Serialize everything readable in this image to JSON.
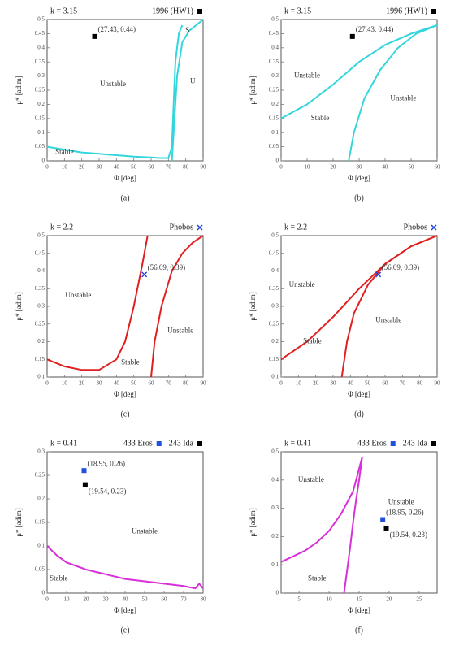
{
  "chart_data": [
    {
      "type": "line",
      "title": "k = 3.15",
      "caption": "(a)",
      "xlabel": "Φ [deg]",
      "ylabel": "μ* [adim]",
      "xlim": [
        0,
        90
      ],
      "xticks": [
        0,
        10,
        20,
        30,
        40,
        50,
        60,
        70,
        80,
        90
      ],
      "ylim": [
        0,
        0.5
      ],
      "yticks": [
        0,
        0.05,
        0.1,
        0.15,
        0.2,
        0.25,
        0.3,
        0.35,
        0.4,
        0.45,
        0.5
      ],
      "curves": [
        {
          "color": "#33d6dc",
          "x": [
            0,
            10,
            20,
            30,
            40,
            50,
            60,
            65,
            70,
            72,
            73,
            74,
            76,
            78
          ],
          "values": [
            0.05,
            0.04,
            0.03,
            0.025,
            0.02,
            0.015,
            0.012,
            0.01,
            0.01,
            0.05,
            0.2,
            0.35,
            0.45,
            0.48
          ]
        },
        {
          "color": "#33d6dc",
          "x": [
            72,
            73,
            75,
            78,
            82,
            86,
            90
          ],
          "values": [
            0,
            0.1,
            0.3,
            0.42,
            0.46,
            0.48,
            0.5
          ]
        }
      ],
      "series": [
        {
          "name": "1996 (HW1)",
          "color": "#000000",
          "marker": "square",
          "x": [
            27.43
          ],
          "values": [
            0.44
          ],
          "value_labels": [
            "(27.43, 0.44)"
          ]
        }
      ],
      "annotations": [
        {
          "text": "Unstable",
          "x": 38,
          "y": 0.27
        },
        {
          "text": "Stable",
          "x": 10,
          "y": 0.03
        },
        {
          "text": "S",
          "x": 81,
          "y": 0.46
        },
        {
          "text": "U",
          "x": 84,
          "y": 0.28
        }
      ]
    },
    {
      "type": "line",
      "title": "k = 3.15",
      "caption": "(b)",
      "xlabel": "Φ [deg]",
      "ylabel": "μ* [adim]",
      "xlim": [
        0,
        60
      ],
      "xticks": [
        0,
        10,
        20,
        30,
        40,
        50,
        60
      ],
      "ylim": [
        0,
        0.5
      ],
      "yticks": [
        0,
        0.05,
        0.1,
        0.15,
        0.2,
        0.25,
        0.3,
        0.35,
        0.4,
        0.45,
        0.5
      ],
      "curves": [
        {
          "color": "#33d6dc",
          "x": [
            0,
            10,
            20,
            30,
            40,
            50,
            60
          ],
          "values": [
            0.15,
            0.2,
            0.27,
            0.35,
            0.41,
            0.45,
            0.48
          ]
        },
        {
          "color": "#33d6dc",
          "x": [
            26,
            28,
            32,
            38,
            45,
            52,
            60
          ],
          "values": [
            0,
            0.1,
            0.22,
            0.32,
            0.4,
            0.45,
            0.48
          ]
        }
      ],
      "series": [
        {
          "name": "1996 (HW1)",
          "color": "#000000",
          "marker": "square",
          "x": [
            27.43
          ],
          "values": [
            0.44
          ],
          "value_labels": [
            "(27.43, 0.44)"
          ]
        }
      ],
      "annotations": [
        {
          "text": "Unstable",
          "x": 10,
          "y": 0.3
        },
        {
          "text": "Stable",
          "x": 15,
          "y": 0.15
        },
        {
          "text": "Unstable",
          "x": 47,
          "y": 0.22
        }
      ]
    },
    {
      "type": "line",
      "title": "k = 2.2",
      "caption": "(c)",
      "xlabel": "Φ [deg]",
      "ylabel": "μ* [adim]",
      "xlim": [
        0,
        90
      ],
      "xticks": [
        0,
        10,
        20,
        30,
        40,
        50,
        60,
        70,
        80,
        90
      ],
      "ylim": [
        0.1,
        0.5
      ],
      "yticks": [
        0.1,
        0.15,
        0.2,
        0.25,
        0.3,
        0.35,
        0.4,
        0.45,
        0.5
      ],
      "curves": [
        {
          "color": "#e02020",
          "x": [
            0,
            10,
            20,
            30,
            40,
            45,
            50,
            55,
            58
          ],
          "values": [
            0.15,
            0.13,
            0.12,
            0.12,
            0.15,
            0.2,
            0.3,
            0.42,
            0.5
          ]
        },
        {
          "color": "#e02020",
          "x": [
            60,
            62,
            66,
            72,
            78,
            84,
            90
          ],
          "values": [
            0.1,
            0.2,
            0.3,
            0.4,
            0.45,
            0.48,
            0.5
          ]
        }
      ],
      "series": [
        {
          "name": "Phobos",
          "color": "#2040e0",
          "marker": "x",
          "x": [
            56.09
          ],
          "values": [
            0.39
          ],
          "value_labels": [
            "(56.09, 0.39)"
          ]
        }
      ],
      "annotations": [
        {
          "text": "Unstable",
          "x": 18,
          "y": 0.33
        },
        {
          "text": "Unstable",
          "x": 77,
          "y": 0.23
        },
        {
          "text": "Stable",
          "x": 48,
          "y": 0.14
        }
      ]
    },
    {
      "type": "line",
      "title": "k = 2.2",
      "caption": "(d)",
      "xlabel": "Φ [deg]",
      "ylabel": "μ* [adim]",
      "xlim": [
        0,
        90
      ],
      "xticks": [
        0,
        10,
        20,
        30,
        40,
        50,
        60,
        70,
        80,
        90
      ],
      "ylim": [
        0.1,
        0.5
      ],
      "yticks": [
        0.1,
        0.15,
        0.2,
        0.25,
        0.3,
        0.35,
        0.4,
        0.45,
        0.5
      ],
      "curves": [
        {
          "color": "#e02020",
          "x": [
            0,
            15,
            30,
            45,
            60,
            75,
            90
          ],
          "values": [
            0.15,
            0.2,
            0.27,
            0.35,
            0.42,
            0.47,
            0.5
          ]
        },
        {
          "color": "#e02020",
          "x": [
            35,
            38,
            42,
            50,
            60,
            75,
            90
          ],
          "values": [
            0.1,
            0.2,
            0.28,
            0.36,
            0.42,
            0.47,
            0.5
          ]
        }
      ],
      "series": [
        {
          "name": "Phobos",
          "color": "#2040e0",
          "marker": "x",
          "x": [
            56.09
          ],
          "values": [
            0.39
          ],
          "value_labels": [
            "(56.09, 0.39)"
          ]
        }
      ],
      "annotations": [
        {
          "text": "Unstable",
          "x": 12,
          "y": 0.36
        },
        {
          "text": "Stable",
          "x": 18,
          "y": 0.2
        },
        {
          "text": "Unstable",
          "x": 62,
          "y": 0.26
        }
      ]
    },
    {
      "type": "line",
      "title": "k = 0.41",
      "caption": "(e)",
      "xlabel": "Φ [deg]",
      "ylabel": "μ* [adim]",
      "xlim": [
        0,
        80
      ],
      "xticks": [
        0,
        10,
        20,
        30,
        40,
        50,
        60,
        70,
        80
      ],
      "ylim": [
        0,
        0.3
      ],
      "yticks": [
        0,
        0.05,
        0.1,
        0.15,
        0.2,
        0.25,
        0.3
      ],
      "curves": [
        {
          "color": "#d830d8",
          "x": [
            0,
            5,
            10,
            20,
            30,
            40,
            50,
            60,
            70,
            76,
            78,
            80
          ],
          "values": [
            0.1,
            0.08,
            0.065,
            0.05,
            0.04,
            0.03,
            0.025,
            0.02,
            0.015,
            0.01,
            0.02,
            0.01
          ]
        }
      ],
      "series": [
        {
          "name": "433 Eros",
          "color": "#2050e0",
          "marker": "square",
          "x": [
            18.95
          ],
          "values": [
            0.26
          ],
          "value_labels": [
            "(18.95, 0.26)"
          ]
        },
        {
          "name": "243 Ida",
          "color": "#000000",
          "marker": "square",
          "x": [
            19.54
          ],
          "values": [
            0.23
          ],
          "value_labels": [
            "(19.54, 0.23)"
          ]
        }
      ],
      "annotations": [
        {
          "text": "Unstable",
          "x": 50,
          "y": 0.13
        },
        {
          "text": "Stable",
          "x": 6,
          "y": 0.03
        }
      ]
    },
    {
      "type": "line",
      "title": "k = 0.41",
      "caption": "(f)",
      "xlabel": "Φ [deg]",
      "ylabel": "μ* [adim]",
      "xlim": [
        2,
        28
      ],
      "xticks": [
        5,
        10,
        15,
        20,
        25
      ],
      "ylim": [
        0,
        0.5
      ],
      "yticks": [
        0,
        0.1,
        0.2,
        0.3,
        0.4,
        0.5
      ],
      "curves": [
        {
          "color": "#d830d8",
          "x": [
            2,
            4,
            6,
            8,
            10,
            12,
            14,
            15.5
          ],
          "values": [
            0.11,
            0.13,
            0.15,
            0.18,
            0.22,
            0.28,
            0.36,
            0.48
          ]
        },
        {
          "color": "#d830d8",
          "x": [
            12.5,
            13,
            13.5,
            14,
            14.5,
            15,
            15.5
          ],
          "values": [
            0,
            0.08,
            0.16,
            0.25,
            0.33,
            0.4,
            0.48
          ]
        }
      ],
      "series": [
        {
          "name": "433 Eros",
          "color": "#2050e0",
          "marker": "square",
          "x": [
            18.95
          ],
          "values": [
            0.26
          ],
          "value_labels": [
            "(18.95, 0.26)"
          ]
        },
        {
          "name": "243 Ida",
          "color": "#000000",
          "marker": "square",
          "x": [
            19.54
          ],
          "values": [
            0.23
          ],
          "value_labels": [
            "(19.54, 0.23)"
          ]
        }
      ],
      "annotations": [
        {
          "text": "Unstable",
          "x": 7,
          "y": 0.4
        },
        {
          "text": "Stable",
          "x": 8,
          "y": 0.05
        },
        {
          "text": "Unstable",
          "x": 22,
          "y": 0.32
        }
      ]
    }
  ]
}
